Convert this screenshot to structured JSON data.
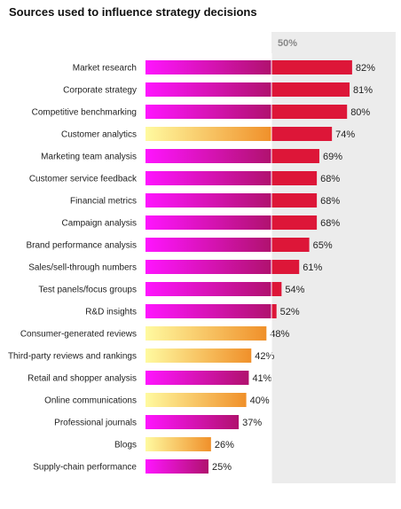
{
  "chart_data": {
    "type": "bar",
    "orientation": "horizontal",
    "title": "Sources used to influence strategy decisions",
    "reference_line": {
      "value": 50,
      "label": "50%"
    },
    "xlim": [
      0,
      100
    ],
    "categories": [
      "Market research",
      "Corporate strategy",
      "Competitive benchmarking",
      "Customer analytics",
      "Marketing team analysis",
      "Customer service feedback",
      "Financial metrics",
      "Campaign analysis",
      "Brand performance analysis",
      "Sales/sell-through numbers",
      "Test panels/focus groups",
      "R&D insights",
      "Consumer-generated reviews",
      "Third-party reviews and rankings",
      "Retail and shopper analysis",
      "Online communications",
      "Professional journals",
      "Blogs",
      "Supply-chain performance"
    ],
    "values": [
      82,
      81,
      80,
      74,
      69,
      68,
      68,
      68,
      65,
      61,
      54,
      52,
      48,
      42,
      41,
      40,
      37,
      26,
      25
    ],
    "value_labels": [
      "82%",
      "81%",
      "80%",
      "74%",
      "69%",
      "68%",
      "68%",
      "68%",
      "65%",
      "61%",
      "54%",
      "52%",
      "48%",
      "42%",
      "41%",
      "40%",
      "37%",
      "26%",
      "25%"
    ],
    "bar_styles": [
      "magenta",
      "magenta",
      "magenta",
      "yellow",
      "magenta",
      "magenta",
      "magenta",
      "magenta",
      "magenta",
      "magenta",
      "magenta",
      "magenta",
      "yellow",
      "yellow",
      "magenta",
      "yellow",
      "magenta",
      "yellow",
      "magenta"
    ],
    "colors": {
      "magenta_start": "#ff14ff",
      "magenta_end": "#b0126e",
      "yellow_start": "#fffaa0",
      "yellow_end": "#f0902a",
      "above_reference": "#dd1638",
      "reference_band": "#ececec"
    },
    "grid": false
  }
}
